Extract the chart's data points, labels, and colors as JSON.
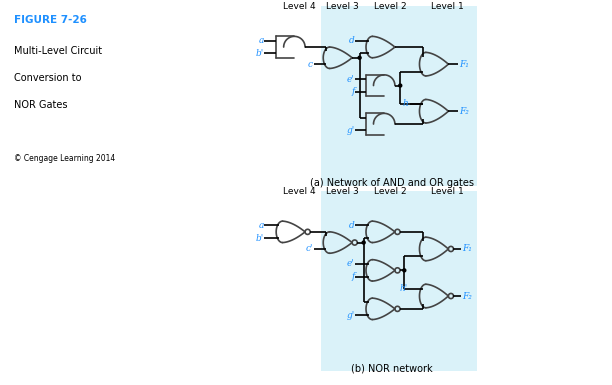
{
  "title": "FIGURE 7-26",
  "subtitle_lines": [
    "Multi-Level Circuit",
    "Conversion to",
    "NOR Gates"
  ],
  "copyright": "© Cengage Learning 2014",
  "title_color": "#1E90FF",
  "label_color": "#1E90FF",
  "bg_color": "#BDE8F5",
  "bg_alpha": 0.6,
  "caption_a": "(a) Network of AND and OR gates",
  "caption_b": "(b) NOR network",
  "level_labels": [
    "Level 4",
    "Level 3",
    "Level 2",
    "Level 1"
  ]
}
